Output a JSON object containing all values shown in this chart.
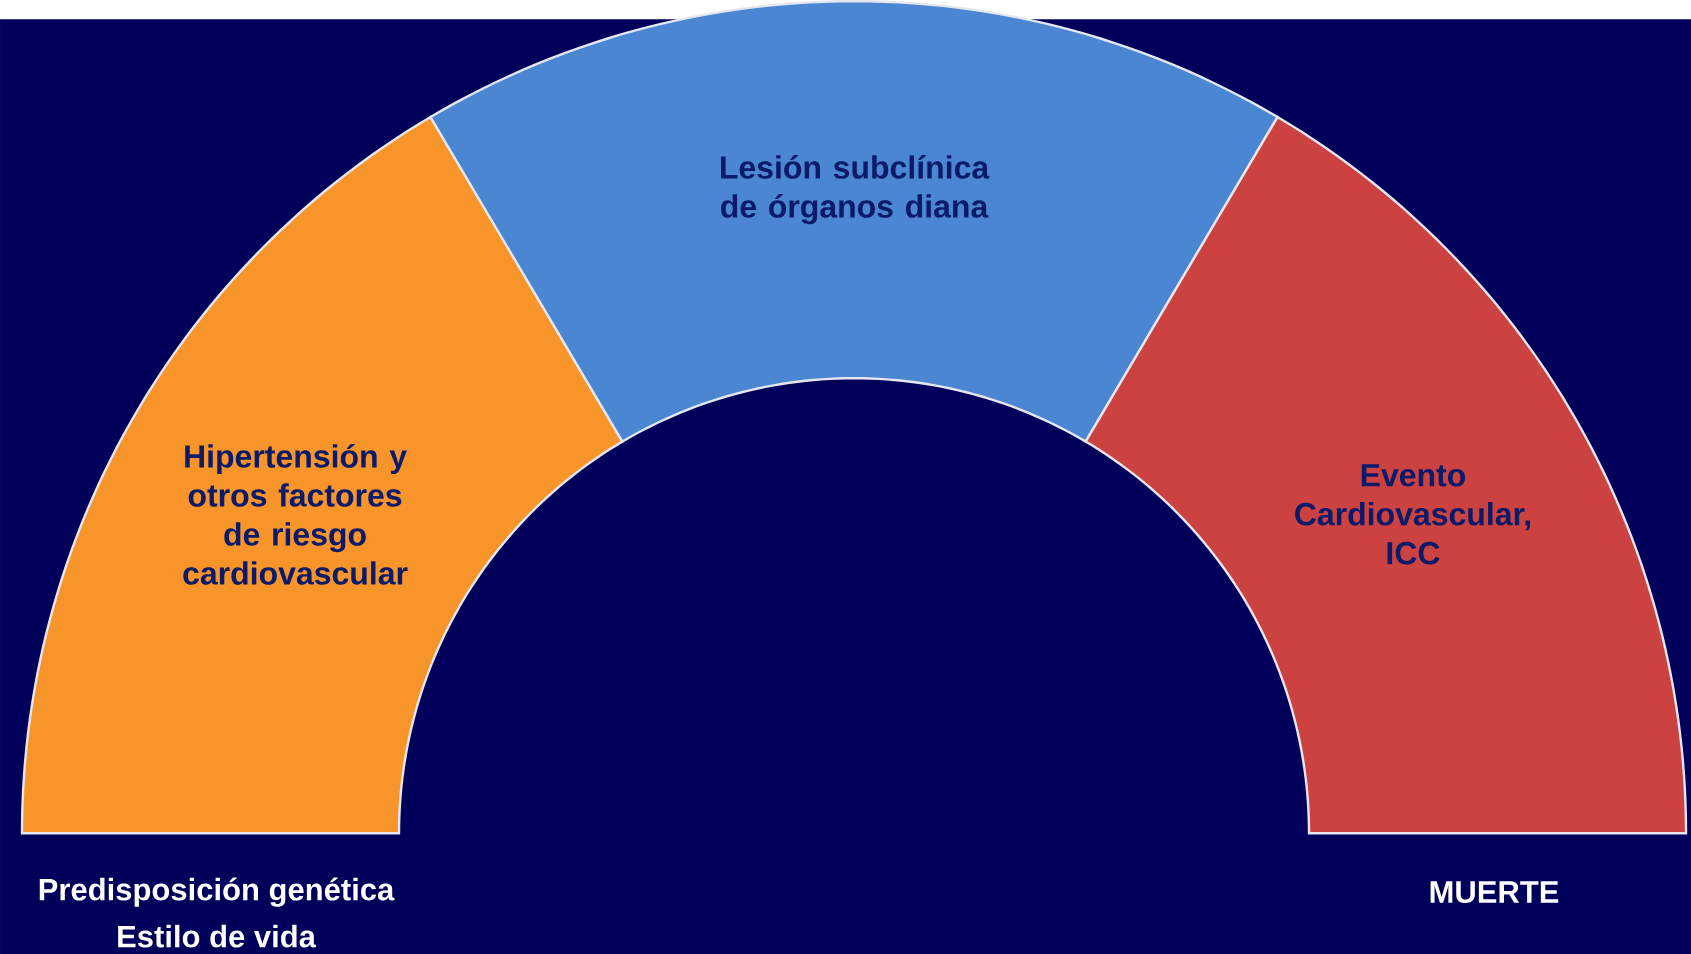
{
  "chart_data": {
    "type": "donut",
    "categories": [
      "Hipertensión y otros factores de riesgo cardiovascular",
      "Lesión subclínica de órganos diana",
      "Evento Cardiovascular, ICC"
    ],
    "values": [
      33,
      34,
      33
    ],
    "colors": [
      "#f7952a",
      "#4a86d2",
      "#cc4240"
    ],
    "annotations": [
      "Predisposición genética",
      "Estilo de vida",
      "MUERTE"
    ]
  }
}
